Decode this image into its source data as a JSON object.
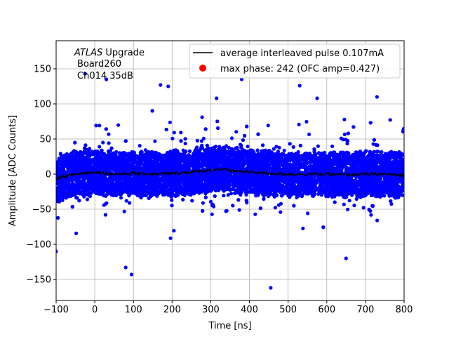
{
  "chart_data": {
    "type": "scatter",
    "title": "",
    "xlabel": "Time [ns]",
    "ylabel": "Amplitude [ADC Counts]",
    "xlim": [
      -100,
      800
    ],
    "ylim": [
      -180,
      190
    ],
    "x_ticks": [
      -100,
      0,
      100,
      200,
      300,
      400,
      500,
      600,
      700,
      800
    ],
    "y_ticks": [
      -150,
      -100,
      -50,
      0,
      50,
      100,
      150
    ],
    "grid": true,
    "legend_position": "top-right",
    "annotation": {
      "line1_italic": "ATLAS",
      "line1_rest": " Upgrade",
      "line2": "Board260",
      "line3": "Ch014 35dB"
    },
    "series": [
      {
        "name": "average interleaved pulse 0.107mA",
        "kind": "line",
        "color": "#000000",
        "x": [
          -100,
          -50,
          0,
          50,
          100,
          150,
          200,
          250,
          300,
          320,
          350,
          400,
          450,
          500,
          550,
          600,
          650,
          700,
          750,
          800
        ],
        "y": [
          -6,
          0,
          3,
          0,
          1,
          0,
          1,
          3,
          6,
          7,
          5,
          3,
          1,
          0,
          0,
          0,
          -1,
          0,
          0,
          -2
        ]
      },
      {
        "name": "max phase: 242 (OFC amp=0.427)",
        "kind": "scatter",
        "color": "#0000ff",
        "x_range": [
          -100,
          800
        ],
        "core_spread": 30,
        "outer_spread": 60,
        "notable_points": [
          {
            "x": -100,
            "y": -110
          },
          {
            "x": -25,
            "y": 143
          },
          {
            "x": 30,
            "y": 135
          },
          {
            "x": 80,
            "y": -133
          },
          {
            "x": 95,
            "y": -143
          },
          {
            "x": 170,
            "y": 127
          },
          {
            "x": 190,
            "y": 125
          },
          {
            "x": 315,
            "y": 108
          },
          {
            "x": 380,
            "y": 135
          },
          {
            "x": 455,
            "y": -162
          },
          {
            "x": 530,
            "y": 126
          },
          {
            "x": 575,
            "y": 108
          },
          {
            "x": 650,
            "y": -120
          },
          {
            "x": 730,
            "y": 110
          },
          {
            "x": 798,
            "y": 63
          }
        ]
      }
    ]
  }
}
